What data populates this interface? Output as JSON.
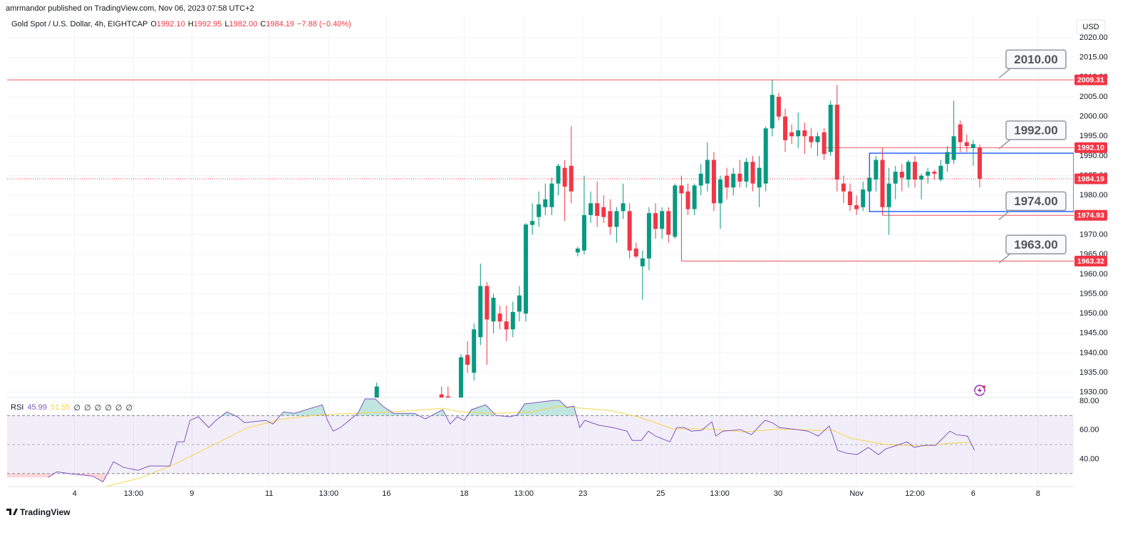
{
  "chart_data": {
    "type": "candlestick",
    "publisher": "amrmandor published on TradingView.com, Nov 06, 2023 07:58 UTC+2",
    "title": "Gold Spot / U.S. Dollar, 4h, EIGHTCAP",
    "ohlc_legend": [
      {
        "key": "O",
        "value": "1992.10"
      },
      {
        "key": "H",
        "value": "1992.95"
      },
      {
        "key": "L",
        "value": "1982.00"
      },
      {
        "key": "C",
        "value": "1984.19"
      }
    ],
    "change": "−7.88 (−0.40%)",
    "currency": "USD",
    "brand": "TradingView",
    "up_color": "#089981",
    "down_color": "#f23645",
    "x": [
      57,
      67,
      68,
      70,
      71,
      72,
      73,
      74,
      75,
      76,
      77,
      78,
      79,
      80,
      81,
      82,
      83,
      84,
      85,
      86,
      87,
      88,
      89,
      90,
      91,
      92,
      93,
      94,
      95,
      96,
      97,
      98,
      99,
      100,
      101,
      102,
      103,
      104,
      105,
      106,
      107,
      108,
      109,
      110,
      111,
      112,
      113,
      114,
      115,
      116,
      117,
      118,
      119,
      120,
      121,
      122,
      123,
      124,
      125,
      126,
      127,
      128,
      129,
      130,
      131,
      132,
      133,
      134,
      135,
      136,
      137,
      138,
      139,
      140,
      141,
      142,
      143,
      144,
      145,
      146,
      147,
      148,
      149,
      150
    ],
    "open": [
      1928,
      1929.5,
      1929,
      1928,
      1939.5,
      1935,
      1944,
      1957,
      1948,
      1950,
      1948,
      1946,
      1950.5,
      1950,
      1972.5,
      1974.5,
      1977,
      1977,
      1983,
      1987,
      1987.5,
      1965.5,
      1966,
      1975,
      1978,
      1977,
      1976,
      1972,
      1976,
      1976,
      1966.5,
      1962,
      1964,
      1975.5,
      1971.5,
      1976,
      1969.5,
      1982.5,
      1981,
      1976.5,
      1982.5,
      1983,
      1989,
      1978,
      1985,
      1982,
      1985.5,
      1983.5,
      1988.5,
      1982,
      1983,
      1997,
      2005,
      2000,
      1996,
      1995,
      1996.5,
      1995,
      1993.5,
      1996,
      1991,
      2003,
      1983,
      1981,
      1977.5,
      1977,
      1981,
      1984,
      1989,
      1977,
      1983,
      1986,
      1984,
      1988.5,
      1984,
      1985,
      1986,
      1984,
      1988,
      1989,
      1998,
      1993.5,
      1992,
      1992.1
    ],
    "high": [
      1932.5,
      1931.5,
      1931.5,
      1939.7,
      1943,
      1947.5,
      1962.7,
      1958,
      1955,
      1952,
      1952,
      1953,
      1957,
      1973,
      1978,
      1981,
      1983,
      1984.5,
      1988,
      1989,
      1997.5,
      1967,
      1985,
      1981,
      1983.5,
      1980,
      1979,
      1977,
      1983,
      1978,
      1968,
      1966,
      1977,
      1978,
      1977,
      1977,
      1983,
      1985,
      1983,
      1983,
      1988,
      1993.5,
      1991,
      1985,
      1987,
      1987,
      1989,
      1989.5,
      1990,
      1990,
      1997.5,
      2009.31,
      2006,
      2002,
      1998,
      2001,
      1998.5,
      1997,
      1996,
      1997,
      2004,
      2008,
      1985,
      1983,
      1980,
      1983.5,
      1986,
      1990,
      1992,
      1987,
      1987.5,
      1988,
      1989,
      1990,
      1985.5,
      1987,
      1986.5,
      1989,
      1992.5,
      2004,
      1999,
      1995.5,
      1994,
      1992.95
    ],
    "low": [
      1927,
      1926,
      1926,
      1926,
      1935,
      1933,
      1942,
      1937,
      1945,
      1946,
      1943,
      1944,
      1948,
      1948,
      1970,
      1972,
      1975,
      1975,
      1980,
      1973.5,
      1978,
      1964.5,
      1965,
      1973,
      1972,
      1973,
      1970,
      1968,
      1974,
      1964,
      1964,
      1953.5,
      1961,
      1969,
      1969,
      1968,
      1969,
      1963.32,
      1975,
      1975,
      1980,
      1981,
      1976,
      1971.5,
      1979,
      1980,
      1982,
      1982,
      1981,
      1977,
      1981,
      1995,
      1999,
      1991,
      1993,
      1992,
      1990.5,
      1992,
      1990,
      1989,
      1990,
      1981,
      1978,
      1976,
      1975,
      1976,
      1978,
      1981,
      1975,
      1970,
      1979,
      1981,
      1982,
      1982,
      1979,
      1983,
      1984,
      1983.5,
      1986,
      1988,
      1991,
      1991,
      1987.5,
      1982
    ],
    "close": [
      1931.5,
      1928,
      1927.5,
      1938.9,
      1937,
      1946,
      1957,
      1948.5,
      1954,
      1948,
      1946,
      1950.4,
      1954.6,
      1972.6,
      1973.5,
      1977.7,
      1979,
      1983,
      1987.5,
      1982.2,
      1981,
      1966.5,
      1975,
      1978,
      1974.8,
      1974.5,
      1972,
      1976,
      1978,
      1966,
      1964.5,
      1964,
      1975.5,
      1971.5,
      1976,
      1970,
      1982.5,
      1980.5,
      1976.5,
      1982.5,
      1985.5,
      1989,
      1978,
      1984,
      1982,
      1985.5,
      1983.5,
      1988.5,
      1983,
      1987,
      1997,
      2005.5,
      2000,
      1994,
      1995,
      1996.5,
      1995,
      1993.5,
      1995,
      1990.5,
      2003,
      1984,
      1981,
      1977.5,
      1976.5,
      1981.5,
      1984.5,
      1989,
      1977,
      1983,
      1986,
      1984.5,
      1988.5,
      1984,
      1985,
      1986,
      1985.5,
      1987.5,
      1991,
      1995,
      1993.5,
      1992.5,
      1993,
      1984.19
    ],
    "xlim": [
      0,
      164.5
    ],
    "xticks": [
      {
        "value": 10.4,
        "label": "4"
      },
      {
        "value": 19.5,
        "label": "13:00"
      },
      {
        "value": 28.5,
        "label": "9"
      },
      {
        "value": 40.4,
        "label": "11"
      },
      {
        "value": 49.6,
        "label": "13:00"
      },
      {
        "value": 58.5,
        "label": "16"
      },
      {
        "value": 70.5,
        "label": "18"
      },
      {
        "value": 79.7,
        "label": "13:00"
      },
      {
        "value": 88.8,
        "label": "23"
      },
      {
        "value": 100.8,
        "label": "25"
      },
      {
        "value": 109.9,
        "label": "13:00"
      },
      {
        "value": 118.9,
        "label": "30"
      },
      {
        "value": 131.0,
        "label": "Nov"
      },
      {
        "value": 140.0,
        "label": "12:00"
      },
      {
        "value": 149.0,
        "label": "6"
      },
      {
        "value": 159.0,
        "label": "8"
      }
    ],
    "ylim": [
      1928.7,
      2025.6
    ],
    "yticks": [
      {
        "value": 2020,
        "label": "2020.00"
      },
      {
        "value": 2015,
        "label": "2015.00"
      },
      {
        "value": 2010,
        "label": "2010.00"
      },
      {
        "value": 2005,
        "label": "2005.00"
      },
      {
        "value": 2000,
        "label": "2000.00"
      },
      {
        "value": 1995,
        "label": "1995.00"
      },
      {
        "value": 1990,
        "label": "1990.00"
      },
      {
        "value": 1985,
        "label": "1985.00"
      },
      {
        "value": 1980,
        "label": "1980.00"
      },
      {
        "value": 1975,
        "label": "1975.00"
      },
      {
        "value": 1970,
        "label": "1970.00"
      },
      {
        "value": 1965,
        "label": "1965.00"
      },
      {
        "value": 1960,
        "label": "1960.00"
      },
      {
        "value": 1955,
        "label": "1955.00"
      },
      {
        "value": 1950,
        "label": "1950.00"
      },
      {
        "value": 1945,
        "label": "1945.00"
      },
      {
        "value": 1940,
        "label": "1940.00"
      },
      {
        "value": 1935,
        "label": "1935.00"
      },
      {
        "value": 1930,
        "label": "1930.00"
      }
    ],
    "grid": true,
    "price_lines": [
      {
        "value": 2009.31,
        "label": "2009.31",
        "from": 0,
        "color": "#f23645",
        "style": "solid"
      },
      {
        "value": 1992.1,
        "label": "1992.10",
        "from": 126,
        "color": "#f23645",
        "style": "solid"
      },
      {
        "value": 1984.19,
        "label": "1984.19",
        "from": 0,
        "color": "#f23645",
        "style": "dotted"
      },
      {
        "value": 1974.93,
        "label": "1974.93",
        "from": 135,
        "color": "#f23645",
        "style": "solid"
      },
      {
        "value": 1963.32,
        "label": "1963.32",
        "from": 104,
        "color": "#f23645",
        "style": "solid"
      }
    ],
    "range_box": {
      "low": 1975.9,
      "high": 1990.7,
      "from": 133,
      "color": "#2962ff"
    },
    "annotations": [
      {
        "value": 2010,
        "label": "2010.00"
      },
      {
        "value": 1992,
        "label": "1992.00"
      },
      {
        "value": 1974,
        "label": "1974.00"
      },
      {
        "value": 1963,
        "label": "1963.00"
      }
    ],
    "rsi": {
      "name": "RSI",
      "last": 45.99,
      "ma_last": 51.55,
      "symbols": [
        "∅",
        "∅",
        "∅",
        "∅",
        "∅",
        "∅"
      ],
      "color": "#7e57c2",
      "ma_color": "#f5d548",
      "ylim": [
        21,
        82.5
      ],
      "yticks": [
        {
          "value": 80,
          "label": "80.00"
        },
        {
          "value": 60,
          "label": "60.00"
        },
        {
          "value": 40,
          "label": "40.00"
        }
      ],
      "bands": [
        70,
        50,
        30
      ],
      "x": [
        6.3,
        7.7,
        9.8,
        13.1,
        14.8,
        16.4,
        18.0,
        20.2,
        21.9,
        25.1,
        26.2,
        27.3,
        28.2,
        29.5,
        31.1,
        32.2,
        33.9,
        35.5,
        36.6,
        39.9,
        41.0,
        42.6,
        44.3,
        48.6,
        49.4,
        50.3,
        51.4,
        54.1,
        55.2,
        56.8,
        57.9,
        59.6,
        62.8,
        64.5,
        66.1,
        67.2,
        68.3,
        69.4,
        70.5,
        71.6,
        73.8,
        75.4,
        77.6,
        78.7,
        79.8,
        84.2,
        85.2,
        86.3,
        87.4,
        88.3,
        89.1,
        91.3,
        93.4,
        95.6,
        96.4,
        97.8,
        98.9,
        100.0,
        102.2,
        103.3,
        104.4,
        105.5,
        107.1,
        108.7,
        109.3,
        110.4,
        113.1,
        114.8,
        115.8,
        116.9,
        118.0,
        119.1,
        121.9,
        123.5,
        125.1,
        126.8,
        128.1,
        129.5,
        131.1,
        132.8,
        134.4,
        135.5,
        137.2,
        138.8,
        139.9,
        141.5,
        143.2,
        144.3,
        145.4,
        146.4,
        148.1,
        149.2
      ],
      "values": [
        27.3,
        31.2,
        29.8,
        28.3,
        24.3,
        38.1,
        34.2,
        32.2,
        35.2,
        35.2,
        51.9,
        51.9,
        66.7,
        69.2,
        61.8,
        66.7,
        72.6,
        69.2,
        65.2,
        66.7,
        64.2,
        72.6,
        71.6,
        77.5,
        66.7,
        59.3,
        61.8,
        71.6,
        81.5,
        81.5,
        76.6,
        71.6,
        71.6,
        67.7,
        71.6,
        74.1,
        64.2,
        69.2,
        66.7,
        74.1,
        77.5,
        70.1,
        69.2,
        70.6,
        78.0,
        80.5,
        80.5,
        75.6,
        76.6,
        61.8,
        66.7,
        63.3,
        61.8,
        59.3,
        52.9,
        52.9,
        59.3,
        55.9,
        51.9,
        61.8,
        61.8,
        59.3,
        59.8,
        65.7,
        55.9,
        59.3,
        60.3,
        56.8,
        61.8,
        66.7,
        65.2,
        61.8,
        60.3,
        59.3,
        55.9,
        62.8,
        46.0,
        44.0,
        43.1,
        48.0,
        43.1,
        47.0,
        49.5,
        51.9,
        48.0,
        49.5,
        49.5,
        54.4,
        59.3,
        56.8,
        55.9,
        45.99
      ],
      "ma_x": [
        15.3,
        20.8,
        26.2,
        31.7,
        37.2,
        42.6,
        48.1,
        53.6,
        59.0,
        64.5,
        67.2,
        69.9,
        75.4,
        80.9,
        85.2,
        88.5,
        92.9,
        97.3,
        102.7,
        108.2,
        113.7,
        119.1,
        124.6,
        127.3,
        130.1,
        135.5,
        141.0,
        145.4,
        148.6
      ],
      "ma_values": [
        21.0,
        27.3,
        37.1,
        49.5,
        61.8,
        67.7,
        70.6,
        71.6,
        72.6,
        74.1,
        75.1,
        72.6,
        71.6,
        72.6,
        76.6,
        75.1,
        73.6,
        69.2,
        60.8,
        60.8,
        58.8,
        60.8,
        59.8,
        59.8,
        54.4,
        50.0,
        49.0,
        50.9,
        51.55
      ]
    }
  }
}
